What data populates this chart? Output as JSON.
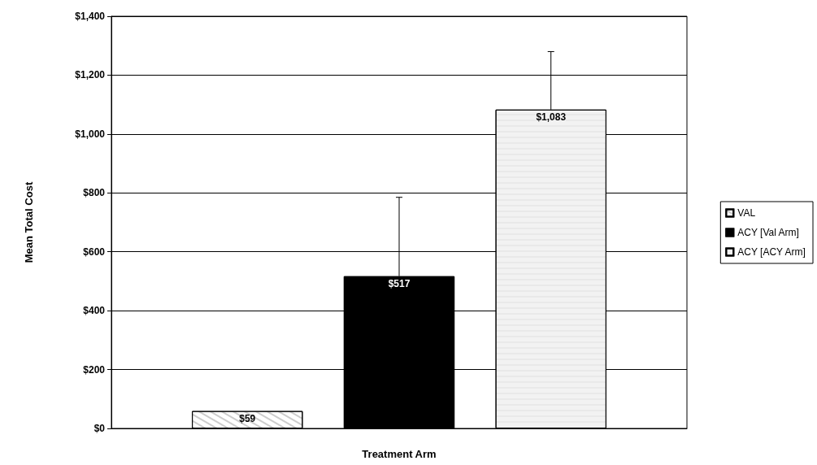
{
  "chart_data": {
    "type": "bar",
    "xlabel": "Treatment Arm",
    "ylabel": "Mean Total Cost",
    "categories": [
      null
    ],
    "series": [
      {
        "name": "VAL",
        "color": "#ffffff",
        "values": [
          59
        ],
        "value_labels": [
          "$59"
        ],
        "errors": [
          null
        ]
      },
      {
        "name": "ACY [Val Arm]",
        "color": "#000000",
        "values": [
          517
        ],
        "value_labels": [
          "$517"
        ],
        "errors": [
          [
            517,
            785
          ]
        ]
      },
      {
        "name": "ACY [ACY Arm]",
        "color": "#f2f2f2",
        "values": [
          1083
        ],
        "value_labels": [
          "$1,083"
        ],
        "errors": [
          [
            1083,
            1280
          ]
        ]
      }
    ],
    "ylim": [
      0,
      1400
    ],
    "yticks": [
      {
        "value": 0,
        "label": "$0"
      },
      {
        "value": 200,
        "label": "$200"
      },
      {
        "value": 400,
        "label": "$400"
      },
      {
        "value": 600,
        "label": "$600"
      },
      {
        "value": 800,
        "label": "$800"
      },
      {
        "value": 1000,
        "label": "$1,000"
      },
      {
        "value": 1200,
        "label": "$1,200"
      },
      {
        "value": 1400,
        "label": "$1,400"
      }
    ],
    "grid": "y",
    "legend": "right"
  }
}
